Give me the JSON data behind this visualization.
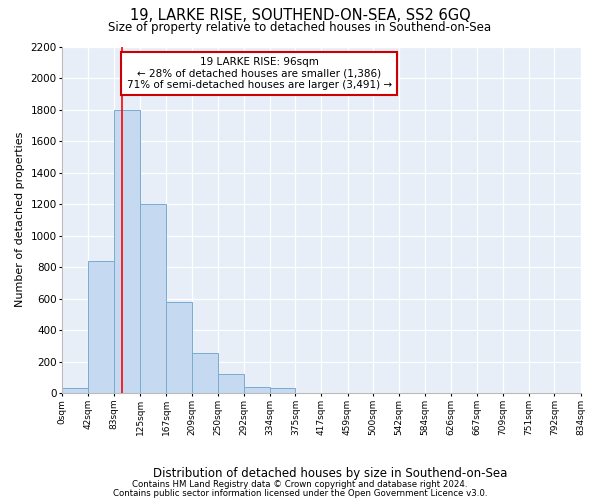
{
  "title": "19, LARKE RISE, SOUTHEND-ON-SEA, SS2 6GQ",
  "subtitle": "Size of property relative to detached houses in Southend-on-Sea",
  "xlabel": "Distribution of detached houses by size in Southend-on-Sea",
  "ylabel": "Number of detached properties",
  "bin_edges": [
    0,
    42,
    83,
    125,
    167,
    209,
    250,
    292,
    334,
    375,
    417,
    459,
    500,
    542,
    584,
    626,
    667,
    709,
    751,
    792,
    834
  ],
  "bin_counts": [
    30,
    840,
    1800,
    1200,
    580,
    255,
    120,
    40,
    30,
    0,
    0,
    0,
    0,
    0,
    0,
    0,
    0,
    0,
    0,
    0
  ],
  "bar_color": "#c5d9f0",
  "bar_edge_color": "#7aabcf",
  "red_line_x": 96,
  "ylim": [
    0,
    2200
  ],
  "yticks": [
    0,
    200,
    400,
    600,
    800,
    1000,
    1200,
    1400,
    1600,
    1800,
    2000,
    2200
  ],
  "annotation_text": "19 LARKE RISE: 96sqm\n← 28% of detached houses are smaller (1,386)\n71% of semi-detached houses are larger (3,491) →",
  "annotation_box_color": "#ffffff",
  "annotation_box_edge_color": "#cc0000",
  "footer_line1": "Contains HM Land Registry data © Crown copyright and database right 2024.",
  "footer_line2": "Contains public sector information licensed under the Open Government Licence v3.0.",
  "tick_labels": [
    "0sqm",
    "42sqm",
    "83sqm",
    "125sqm",
    "167sqm",
    "209sqm",
    "250sqm",
    "292sqm",
    "334sqm",
    "375sqm",
    "417sqm",
    "459sqm",
    "500sqm",
    "542sqm",
    "584sqm",
    "626sqm",
    "667sqm",
    "709sqm",
    "751sqm",
    "792sqm",
    "834sqm"
  ],
  "background_color": "#e8eef8"
}
